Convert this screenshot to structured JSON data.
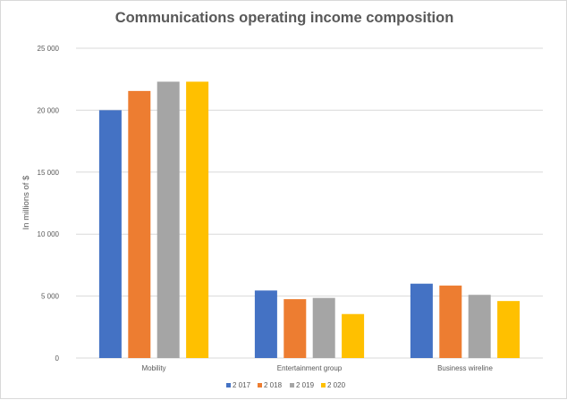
{
  "chart_data": {
    "type": "bar",
    "title": "Communications operating income composition",
    "ylabel": "In millions of $",
    "xlabel": "",
    "categories": [
      "Mobility",
      "Entertainment group",
      "Business wireline"
    ],
    "series": [
      {
        "name": "2 017",
        "color": "#4472c4",
        "values": [
          20000,
          5450,
          6000
        ]
      },
      {
        "name": "2 018",
        "color": "#ed7d31",
        "values": [
          21550,
          4750,
          5850
        ]
      },
      {
        "name": "2 019",
        "color": "#a5a5a5",
        "values": [
          22300,
          4850,
          5100
        ]
      },
      {
        "name": "2 020",
        "color": "#ffc000",
        "values": [
          22300,
          3550,
          4600
        ]
      }
    ],
    "ylim": [
      0,
      25000
    ],
    "yticks": [
      0,
      5000,
      10000,
      15000,
      20000,
      25000
    ],
    "ytick_labels": [
      "0",
      "5 000",
      "10 000",
      "15 000",
      "20 000",
      "25 000"
    ],
    "grid": true,
    "legend_position": "bottom"
  }
}
